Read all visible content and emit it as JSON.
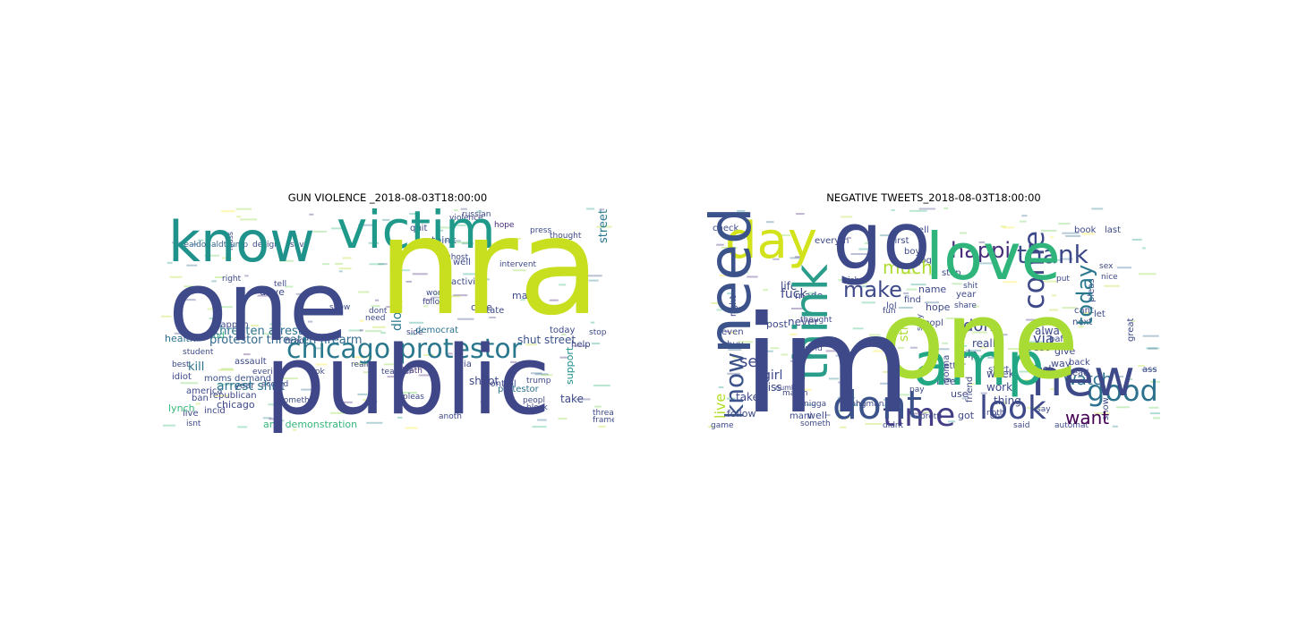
{
  "figure": {
    "panels": [
      {
        "title": "GUN VIOLENCE _2018-08-03T18:00:00",
        "words": [
          {
            "text": "nra",
            "color": "#c8df1f"
          },
          {
            "text": "one",
            "color": "#3e4a89"
          },
          {
            "text": "public",
            "color": "#3f4788"
          },
          {
            "text": "know",
            "color": "#20928c"
          },
          {
            "text": "victim",
            "color": "#1f9a8a"
          },
          {
            "text": "chicago protestor",
            "color": "#2a788e"
          },
          {
            "text": "protestor threaten firearm",
            "color": "#31688e"
          },
          {
            "text": "threaten arrest",
            "color": "#2c728e"
          },
          {
            "text": "arrest shut",
            "color": "#2c728e"
          },
          {
            "text": "shut street",
            "color": "#3b528b"
          },
          {
            "text": "street anti",
            "color": "#2a788e"
          },
          {
            "text": "anti demonstration",
            "color": "#35b779"
          },
          {
            "text": "realdonaldtrump",
            "color": "#33638d"
          },
          {
            "text": "design",
            "color": "#3e4989"
          },
          {
            "text": "save",
            "color": "#3e4989"
          },
          {
            "text": "hope",
            "color": "#472c7a"
          },
          {
            "text": "think",
            "color": "#3b528b"
          },
          {
            "text": "make",
            "color": "#3e4989"
          },
          {
            "text": "shoot",
            "color": "#3e4989"
          },
          {
            "text": "dloesch",
            "color": "#2a788e"
          },
          {
            "text": "health",
            "color": "#2c728e"
          },
          {
            "text": "kill",
            "color": "#2c728e"
          },
          {
            "text": "lynch",
            "color": "#35b779"
          },
          {
            "text": "democrat",
            "color": "#2c728e"
          },
          {
            "text": "help",
            "color": "#3e4989"
          },
          {
            "text": "support",
            "color": "#21918c"
          },
          {
            "text": "take",
            "color": "#3e4989"
          },
          {
            "text": "death",
            "color": "#472c7a"
          },
          {
            "text": "moms demand",
            "color": "#3b528b"
          },
          {
            "text": "republican",
            "color": "#3e4989"
          },
          {
            "text": "chicago",
            "color": "#3e4989"
          },
          {
            "text": "ban",
            "color": "#3e4989"
          },
          {
            "text": "live",
            "color": "#3e4989"
          },
          {
            "text": "america",
            "color": "#3e4989"
          },
          {
            "text": "drive",
            "color": "#3e4989"
          },
          {
            "text": "assault",
            "color": "#3e4989"
          },
          {
            "text": "mass",
            "color": "#3e4989"
          },
          {
            "text": "protestor",
            "color": "#2c728e"
          },
          {
            "text": "control",
            "color": "#3e4989"
          },
          {
            "text": "via",
            "color": "#3e4989"
          },
          {
            "text": "today",
            "color": "#3e4989"
          },
          {
            "text": "care",
            "color": "#3e4989"
          },
          {
            "text": "well",
            "color": "#3e4989"
          },
          {
            "text": "state",
            "color": "#3e4989"
          },
          {
            "text": "activist",
            "color": "#3e4989"
          },
          {
            "text": "quit",
            "color": "#3e4989"
          },
          {
            "text": "incid",
            "color": "#3e4989"
          },
          {
            "text": "idiot",
            "color": "#3e4989"
          },
          {
            "text": "student",
            "color": "#3e4989"
          },
          {
            "text": "happen",
            "color": "#3e4989"
          },
          {
            "text": "good",
            "color": "#35b779"
          },
          {
            "text": "year",
            "color": "#3e4989"
          },
          {
            "text": "isnt",
            "color": "#3e4989"
          },
          {
            "text": "accord",
            "color": "#3e4989"
          },
          {
            "text": "someth",
            "color": "#3e4989"
          },
          {
            "text": "russian",
            "color": "#3e4989"
          },
          {
            "text": "stop",
            "color": "#3e4989"
          },
          {
            "text": "read",
            "color": "#3e4989"
          },
          {
            "text": "teacher",
            "color": "#3e4989"
          },
          {
            "text": "press",
            "color": "#3e4989"
          },
          {
            "text": "thought",
            "color": "#3e4989"
          },
          {
            "text": "intervent",
            "color": "#3e4989"
          },
          {
            "text": "violence",
            "color": "#3e4989"
          },
          {
            "text": "anoth",
            "color": "#3e4989"
          },
          {
            "text": "pleas",
            "color": "#3e4989"
          },
          {
            "text": "word",
            "color": "#3e4989"
          },
          {
            "text": "right",
            "color": "#3e4989"
          },
          {
            "text": "tell",
            "color": "#3e4989"
          },
          {
            "text": "side",
            "color": "#3e4989"
          },
          {
            "text": "look",
            "color": "#3e4989"
          },
          {
            "text": "bill",
            "color": "#3e4989"
          },
          {
            "text": "ghost",
            "color": "#3e4989"
          },
          {
            "text": "show",
            "color": "#3e4989"
          },
          {
            "text": "follow",
            "color": "#3e4989"
          },
          {
            "text": "block",
            "color": "#3e4989"
          },
          {
            "text": "threat",
            "color": "#3e4989"
          },
          {
            "text": "frame",
            "color": "#3e4989"
          },
          {
            "text": "everi",
            "color": "#3e4989"
          },
          {
            "text": "realli",
            "color": "#3e4989"
          },
          {
            "text": "need",
            "color": "#3e4989"
          },
          {
            "text": "peopl",
            "color": "#3e4989"
          },
          {
            "text": "dont",
            "color": "#3e4989"
          },
          {
            "text": "trump",
            "color": "#3e4989"
          },
          {
            "text": "best",
            "color": "#3e4989"
          }
        ]
      },
      {
        "title": "NEGATIVE TWEETS_2018-08-03T18:00:00",
        "words": [
          {
            "text": "im",
            "color": "#3e4989"
          },
          {
            "text": "one",
            "color": "#a8db34"
          },
          {
            "text": "go",
            "color": "#3e4989"
          },
          {
            "text": "love",
            "color": "#2fb47c"
          },
          {
            "text": "day",
            "color": "#d2e21b"
          },
          {
            "text": "need",
            "color": "#3b528b"
          },
          {
            "text": "think",
            "color": "#2a9d8a"
          },
          {
            "text": "amp",
            "color": "#22a785"
          },
          {
            "text": "new",
            "color": "#3e4989"
          },
          {
            "text": "dont",
            "color": "#3b528b"
          },
          {
            "text": "time",
            "color": "#433e85"
          },
          {
            "text": "look",
            "color": "#3e4989"
          },
          {
            "text": "good",
            "color": "#2c728e"
          },
          {
            "text": "want",
            "color": "#440154"
          },
          {
            "text": "watch",
            "color": "#2c728e"
          },
          {
            "text": "come",
            "color": "#3e4989"
          },
          {
            "text": "today",
            "color": "#2a788e"
          },
          {
            "text": "thank",
            "color": "#3e4989"
          },
          {
            "text": "happi",
            "color": "#472c7a"
          },
          {
            "text": "make",
            "color": "#3e4989"
          },
          {
            "text": "much",
            "color": "#addc30"
          },
          {
            "text": "know",
            "color": "#3b528b"
          },
          {
            "text": "see",
            "color": "#3e4989"
          },
          {
            "text": "live",
            "color": "#b5de2b"
          },
          {
            "text": "take",
            "color": "#3e4989"
          },
          {
            "text": "via",
            "color": "#3e4989"
          },
          {
            "text": "don",
            "color": "#3e4989"
          },
          {
            "text": "still",
            "color": "#addc30"
          },
          {
            "text": "best",
            "color": "#3e4989"
          },
          {
            "text": "realli",
            "color": "#3e4989"
          },
          {
            "text": "life",
            "color": "#3e4989"
          },
          {
            "text": "made",
            "color": "#3e4989"
          },
          {
            "text": "fuck",
            "color": "#3e4989"
          },
          {
            "text": "post",
            "color": "#3e4989"
          },
          {
            "text": "never",
            "color": "#3e4989"
          },
          {
            "text": "girl",
            "color": "#3e4989"
          },
          {
            "text": "miss",
            "color": "#3e4989"
          },
          {
            "text": "week",
            "color": "#3e4989"
          },
          {
            "text": "work",
            "color": "#3e4989"
          },
          {
            "text": "thing",
            "color": "#3e4989"
          },
          {
            "text": "alway",
            "color": "#3e4989"
          },
          {
            "text": "way",
            "color": "#3e4989"
          },
          {
            "text": "feel",
            "color": "#3e4989"
          },
          {
            "text": "name",
            "color": "#3e4989"
          },
          {
            "text": "hope",
            "color": "#3e4989"
          },
          {
            "text": "lol",
            "color": "#3e4989"
          },
          {
            "text": "better",
            "color": "#3e4989"
          },
          {
            "text": "help",
            "color": "#3e4989"
          },
          {
            "text": "free",
            "color": "#3e4989"
          },
          {
            "text": "use",
            "color": "#3e4989"
          },
          {
            "text": "got",
            "color": "#3e4989"
          },
          {
            "text": "well",
            "color": "#3e4989"
          },
          {
            "text": "mani",
            "color": "#3e4989"
          },
          {
            "text": "follow",
            "color": "#3e4989"
          },
          {
            "text": "gonna",
            "color": "#3e4989"
          },
          {
            "text": "friend",
            "color": "#3e4989"
          },
          {
            "text": "start",
            "color": "#3e4989"
          },
          {
            "text": "give",
            "color": "#3e4989"
          },
          {
            "text": "cant",
            "color": "#3e4989"
          },
          {
            "text": "next",
            "color": "#3e4989"
          },
          {
            "text": "let",
            "color": "#3e4989"
          },
          {
            "text": "show",
            "color": "#3e4989"
          },
          {
            "text": "last",
            "color": "#3e4989"
          },
          {
            "text": "book",
            "color": "#3e4989"
          },
          {
            "text": "check",
            "color": "#3e4989"
          },
          {
            "text": "tell",
            "color": "#3e4989"
          },
          {
            "text": "everyth",
            "color": "#3e4989"
          },
          {
            "text": "first",
            "color": "#3e4989"
          },
          {
            "text": "boy",
            "color": "#3e4989"
          },
          {
            "text": "dog",
            "color": "#3e4989"
          },
          {
            "text": "year",
            "color": "#3e4989"
          },
          {
            "text": "stop",
            "color": "#3e4989"
          },
          {
            "text": "part",
            "color": "#3e4989"
          },
          {
            "text": "back",
            "color": "#3e4989"
          },
          {
            "text": "read",
            "color": "#3e4989"
          },
          {
            "text": "great",
            "color": "#3e4989"
          },
          {
            "text": "ass",
            "color": "#3e4989"
          },
          {
            "text": "pleas",
            "color": "#3e4989"
          },
          {
            "text": "even",
            "color": "#3e4989"
          },
          {
            "text": "buy",
            "color": "#3e4989"
          },
          {
            "text": "right",
            "color": "#3e4989"
          },
          {
            "text": "peopl",
            "color": "#3e4989"
          },
          {
            "text": "find",
            "color": "#3e4989"
          },
          {
            "text": "wish",
            "color": "#3e4989"
          },
          {
            "text": "noth",
            "color": "#3e4989"
          },
          {
            "text": "say",
            "color": "#3e4989"
          },
          {
            "text": "game",
            "color": "#3e4989"
          },
          {
            "text": "someth",
            "color": "#3e4989"
          },
          {
            "text": "fun",
            "color": "#3e4989"
          },
          {
            "text": "thought",
            "color": "#3e4989"
          },
          {
            "text": "world",
            "color": "#3e4989"
          },
          {
            "text": "stay",
            "color": "#3e4989"
          },
          {
            "text": "shit",
            "color": "#3e4989"
          },
          {
            "text": "put",
            "color": "#3e4989"
          },
          {
            "text": "nice",
            "color": "#3e4989"
          },
          {
            "text": "sex",
            "color": "#3e4989"
          },
          {
            "text": "pay",
            "color": "#3e4989"
          },
          {
            "text": "may",
            "color": "#3e4989"
          },
          {
            "text": "chang",
            "color": "#3e4989"
          },
          {
            "text": "human",
            "color": "#3e4989"
          },
          {
            "text": "pretti",
            "color": "#3e4989"
          },
          {
            "text": "share",
            "color": "#3e4989"
          },
          {
            "text": "oh",
            "color": "#3e4989"
          },
          {
            "text": "said",
            "color": "#3e4989"
          },
          {
            "text": "didnt",
            "color": "#3e4989"
          },
          {
            "text": "automat",
            "color": "#3e4989"
          },
          {
            "text": "match",
            "color": "#3e4989"
          },
          {
            "text": "number",
            "color": "#3e4989"
          },
          {
            "text": "nigga",
            "color": "#3e4989"
          }
        ]
      }
    ]
  }
}
